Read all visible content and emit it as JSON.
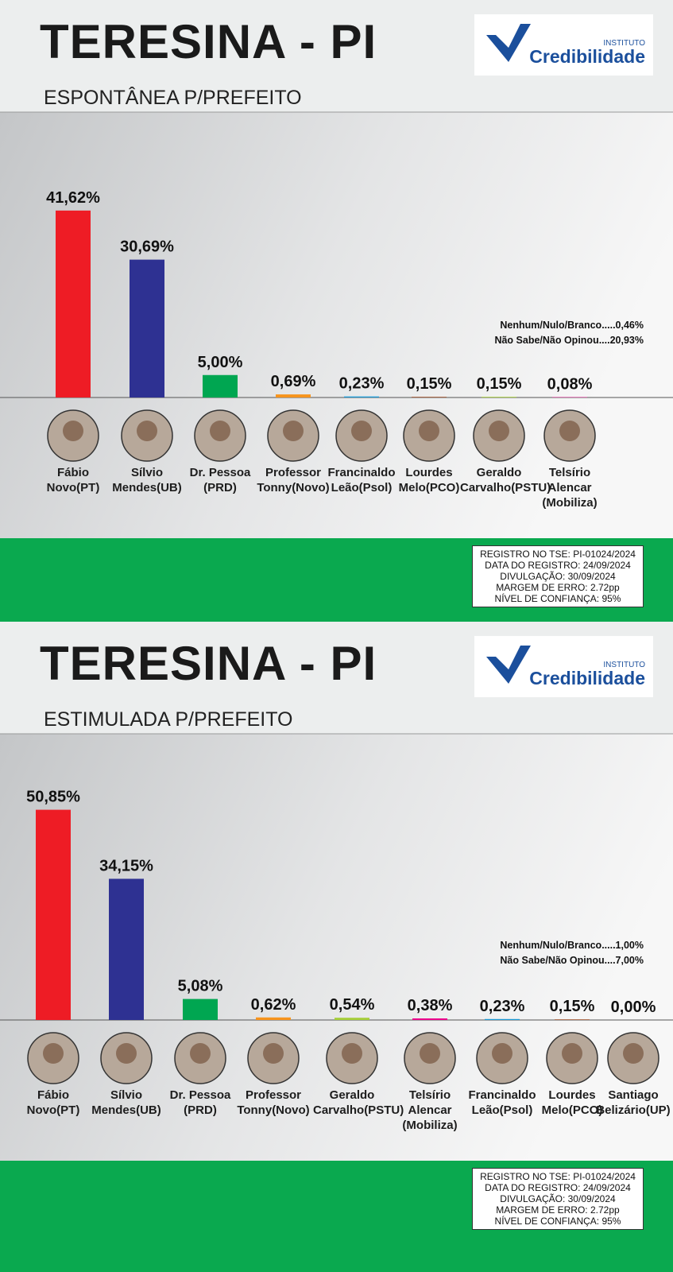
{
  "chart_data": [
    {
      "type": "bar",
      "title": "TERESINA - PI",
      "subtitle": "ESPONTÂNEA P/PREFEITO",
      "logo": {
        "top": "INSTITUTO",
        "name": "Credibilidade"
      },
      "categories": [
        "Fábio Novo(PT)",
        "Sílvio Mendes(UB)",
        "Dr. Pessoa (PRD)",
        "Professor Tonny(Novo)",
        "Francinaldo Leão(Psol)",
        "Lourdes Melo(PCO)",
        "Geraldo Carvalho(PSTU)",
        "Telsírio Alencar (Mobiliza)"
      ],
      "values": [
        41.62,
        30.69,
        5.0,
        0.69,
        0.23,
        0.15,
        0.15,
        0.08
      ],
      "value_labels": [
        "41,62%",
        "30,69%",
        "5,00%",
        "0,69%",
        "0,23%",
        "0,15%",
        "0,15%",
        "0,08%"
      ],
      "colors": [
        "#ee1c25",
        "#2e3192",
        "#00a651",
        "#f7941d",
        "#1b9ad6",
        "#a0522d",
        "#a6ce39",
        "#ec008c"
      ],
      "annotations": [
        "Nenhum/Nulo/Branco.....0,46%",
        "Não Sabe/Não Opinou....20,93%"
      ],
      "registration": [
        "REGISTRO NO TSE: PI-01024/2024",
        "DATA DO REGISTRO: 24/09/2024",
        "DIVULGAÇÃO: 30/09/2024",
        "MARGEM DE ERRO: 2.72pp",
        "NÍVEL DE CONFIANÇA: 95%"
      ]
    },
    {
      "type": "bar",
      "title": "TERESINA - PI",
      "subtitle": "ESTIMULADA P/PREFEITO",
      "logo": {
        "top": "INSTITUTO",
        "name": "Credibilidade"
      },
      "categories": [
        "Fábio Novo(PT)",
        "Sílvio Mendes(UB)",
        "Dr. Pessoa (PRD)",
        "Professor Tonny(Novo)",
        "Geraldo Carvalho(PSTU)",
        "Telsírio Alencar (Mobiliza)",
        "Francinaldo Leão(Psol)",
        "Lourdes Melo(PCO)",
        "Santiago Belizário(UP)"
      ],
      "values": [
        50.85,
        34.15,
        5.08,
        0.62,
        0.54,
        0.38,
        0.23,
        0.15,
        0.0
      ],
      "value_labels": [
        "50,85%",
        "34,15%",
        "5,08%",
        "0,62%",
        "0,54%",
        "0,38%",
        "0,23%",
        "0,15%",
        "0,00%"
      ],
      "colors": [
        "#ee1c25",
        "#2e3192",
        "#00a651",
        "#f7941d",
        "#a6ce39",
        "#ec008c",
        "#1b9ad6",
        "#a0522d",
        "#888888"
      ],
      "annotations": [
        "Nenhum/Nulo/Branco.....1,00%",
        "Não Sabe/Não Opinou....7,00%"
      ],
      "registration": [
        "REGISTRO NO TSE: PI-01024/2024",
        "DATA DO REGISTRO: 24/09/2024",
        "DIVULGAÇÃO: 30/09/2024",
        "MARGEM DE ERRO: 2.72pp",
        "NÍVEL DE CONFIANÇA: 95%"
      ]
    }
  ]
}
